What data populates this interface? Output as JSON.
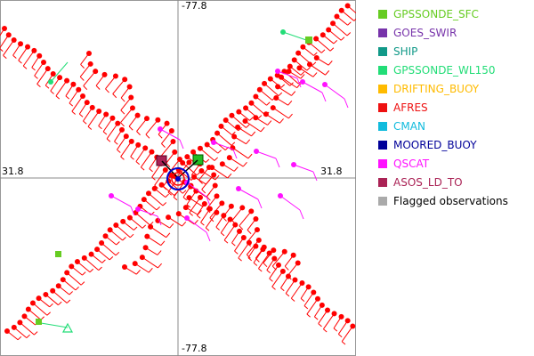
{
  "map": {
    "labels": {
      "top": "-77.8",
      "bottom": "-77.8",
      "left": "31.8",
      "right": "31.8"
    },
    "track_color": "#ff0000",
    "crosshair_color": "#888888"
  },
  "legend": {
    "items": [
      {
        "label": "GPSSONDE_SFC",
        "color": "#66cc22"
      },
      {
        "label": "GOES_SWIR",
        "color": "#7733aa"
      },
      {
        "label": "SHIP",
        "color": "#119988"
      },
      {
        "label": "GPSSONDE_WL150",
        "color": "#22dd77"
      },
      {
        "label": "DRIFTING_BUOY",
        "color": "#ffbb00"
      },
      {
        "label": "AFRES",
        "color": "#ee1111"
      },
      {
        "label": "CMAN",
        "color": "#11bbdd"
      },
      {
        "label": "MOORED_BUOY",
        "color": "#000099"
      },
      {
        "label": "QSCAT",
        "color": "#ff11ff"
      },
      {
        "label": "ASOS_LD_TO",
        "color": "#aa2255"
      },
      {
        "label": "Flagged observations",
        "color": "#aaaaaa"
      }
    ]
  }
}
